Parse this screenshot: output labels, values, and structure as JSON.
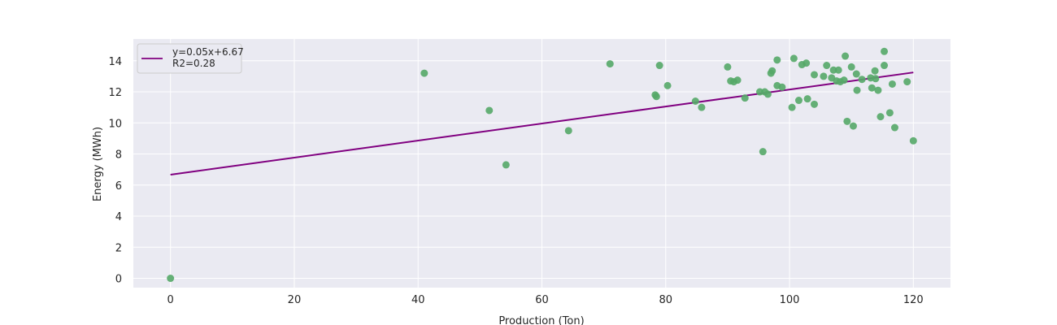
{
  "chart_data": {
    "type": "scatter",
    "xlabel": "Production (Ton)",
    "ylabel": "Energy (MWh)",
    "xlim": [
      -6,
      126
    ],
    "ylim": [
      -0.6,
      15.4
    ],
    "x_ticks": [
      0,
      20,
      40,
      60,
      80,
      100,
      120
    ],
    "y_ticks": [
      0,
      2,
      4,
      6,
      8,
      10,
      12,
      14
    ],
    "grid": true,
    "legend_position": "top-left",
    "colors": {
      "background": "#eaeaf2",
      "grid": "#ffffff",
      "points": "#55a868",
      "fit_line": "#800080"
    },
    "fit": {
      "slope": 0.0548,
      "intercept": 6.67,
      "x_range": [
        0,
        120
      ],
      "legend_line1": "y=0.05x+6.67",
      "legend_line2": "R2=0.28"
    },
    "points": [
      [
        0,
        0
      ],
      [
        41,
        13.2
      ],
      [
        51.5,
        10.8
      ],
      [
        54.2,
        7.3
      ],
      [
        64.3,
        9.5
      ],
      [
        71,
        13.8
      ],
      [
        78.3,
        11.8
      ],
      [
        78.5,
        11.7
      ],
      [
        79,
        13.7
      ],
      [
        80.3,
        12.4
      ],
      [
        84.8,
        11.4
      ],
      [
        85.8,
        11.0
      ],
      [
        90,
        13.6
      ],
      [
        90.5,
        12.7
      ],
      [
        91,
        12.65
      ],
      [
        91.6,
        12.75
      ],
      [
        92.8,
        11.6
      ],
      [
        95.2,
        12.0
      ],
      [
        95.7,
        8.15
      ],
      [
        96,
        12.0
      ],
      [
        96.5,
        11.85
      ],
      [
        97,
        13.2
      ],
      [
        97.2,
        13.35
      ],
      [
        98,
        14.05
      ],
      [
        98,
        12.4
      ],
      [
        98.8,
        12.3
      ],
      [
        100.4,
        11.0
      ],
      [
        100.7,
        14.15
      ],
      [
        101.5,
        11.45
      ],
      [
        102,
        13.75
      ],
      [
        102.7,
        13.85
      ],
      [
        102.9,
        11.55
      ],
      [
        104,
        13.1
      ],
      [
        104,
        11.2
      ],
      [
        105.5,
        13.0
      ],
      [
        106,
        13.7
      ],
      [
        106.8,
        12.9
      ],
      [
        107.1,
        13.4
      ],
      [
        107.6,
        12.7
      ],
      [
        107.9,
        13.4
      ],
      [
        108.2,
        12.65
      ],
      [
        108.8,
        12.75
      ],
      [
        109,
        14.3
      ],
      [
        109.3,
        10.1
      ],
      [
        110,
        13.6
      ],
      [
        110.3,
        9.8
      ],
      [
        110.8,
        13.15
      ],
      [
        110.9,
        12.1
      ],
      [
        111.7,
        12.8
      ],
      [
        113.1,
        12.9
      ],
      [
        113.3,
        12.25
      ],
      [
        113.8,
        13.35
      ],
      [
        113.9,
        12.85
      ],
      [
        114.3,
        12.1
      ],
      [
        114.7,
        10.4
      ],
      [
        115.3,
        14.6
      ],
      [
        115.3,
        13.7
      ],
      [
        116.2,
        10.65
      ],
      [
        116.6,
        12.5
      ],
      [
        117,
        9.7
      ],
      [
        119,
        12.65
      ],
      [
        120,
        8.85
      ]
    ]
  }
}
